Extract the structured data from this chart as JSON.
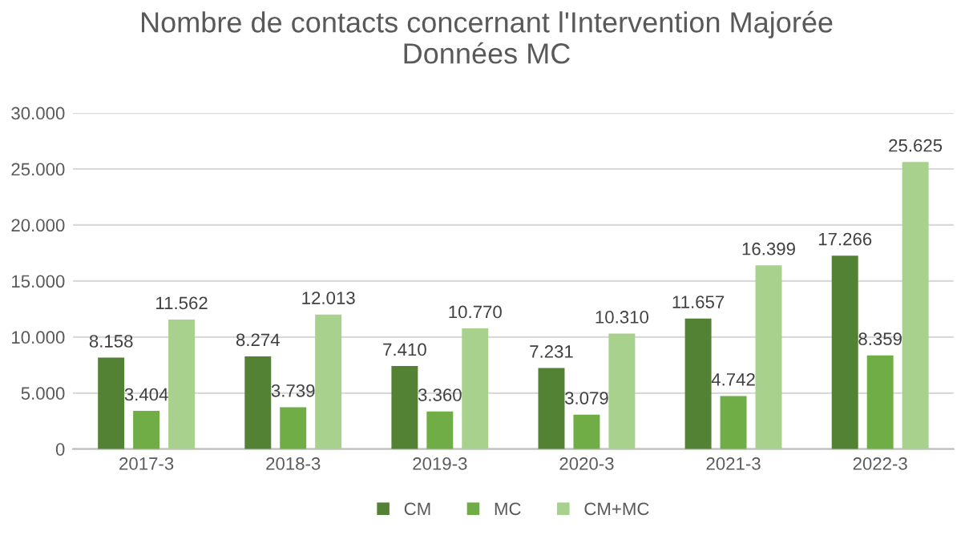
{
  "chart_data": {
    "type": "bar",
    "title": "Nombre de contacts concernant l'Intervention Majorée\nDonnées MC",
    "categories": [
      "2017-3",
      "2018-3",
      "2019-3",
      "2020-3",
      "2021-3",
      "2022-3"
    ],
    "series": [
      {
        "name": "CM",
        "color": "#548235",
        "values": [
          8158,
          8274,
          7410,
          7231,
          11657,
          17266
        ],
        "value_labels": [
          "8.158",
          "8.274",
          "7.410",
          "7.231",
          "11.657",
          "17.266"
        ]
      },
      {
        "name": "MC",
        "color": "#70ad47",
        "values": [
          3404,
          3739,
          3360,
          3079,
          4742,
          8359
        ],
        "value_labels": [
          "3.404",
          "3.739",
          "3.360",
          "3.079",
          "4.742",
          "8.359"
        ]
      },
      {
        "name": "CM+MC",
        "color": "#a9d18e",
        "values": [
          11562,
          12013,
          10770,
          10310,
          16399,
          25625
        ],
        "value_labels": [
          "11.562",
          "12.013",
          "10.770",
          "10.310",
          "16.399",
          "25.625"
        ]
      }
    ],
    "ylim": [
      0,
      30000
    ],
    "yticks": [
      0,
      {
        "value": 5000,
        "label": "5.000"
      },
      {
        "value": 10000,
        "label": "10.000"
      },
      {
        "value": 15000,
        "label": "15.000"
      },
      {
        "value": 20000,
        "label": "20.000"
      },
      {
        "value": 25000,
        "label": "25.000"
      },
      {
        "value": 30000,
        "label": "30.000"
      }
    ],
    "grid": "y",
    "legend": "bottom"
  }
}
